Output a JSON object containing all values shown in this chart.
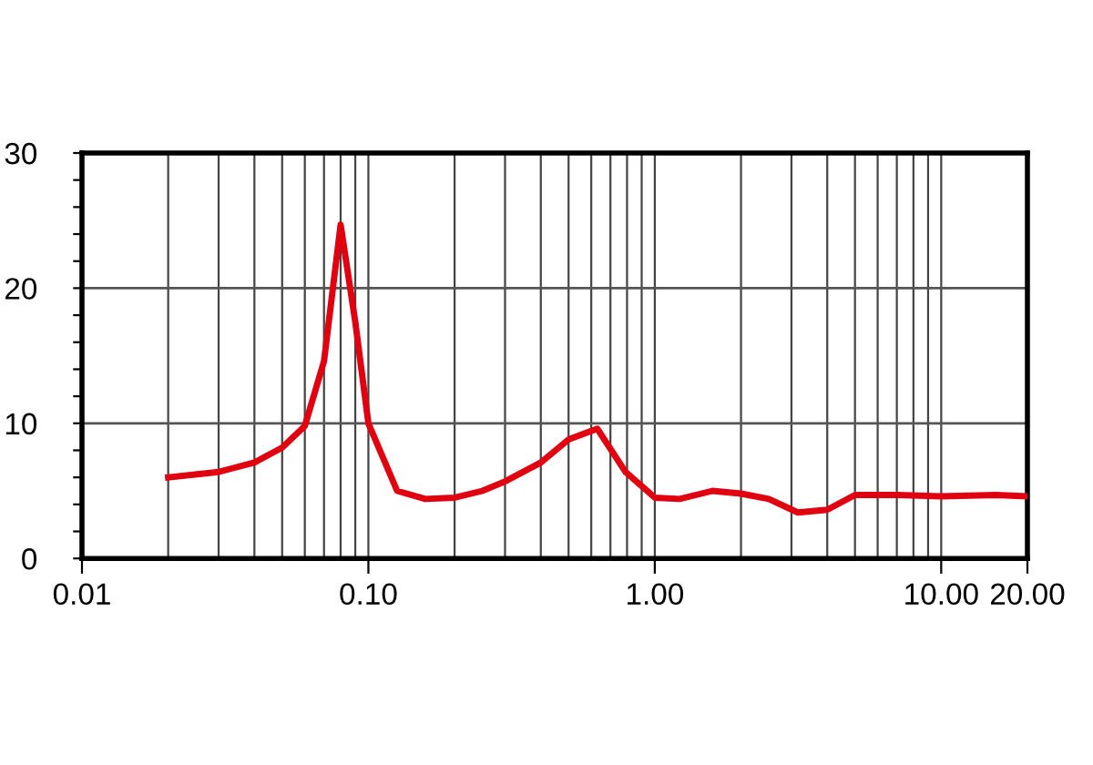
{
  "chart_data": {
    "type": "line",
    "log": "x",
    "x": [
      0.02,
      0.03,
      0.04,
      0.05,
      0.06,
      0.07,
      0.08,
      0.09,
      0.1,
      0.126,
      0.158,
      0.2,
      0.25,
      0.3,
      0.4,
      0.5,
      0.63,
      0.79,
      1.0,
      1.22,
      1.59,
      2.0,
      2.5,
      3.16,
      4.0,
      5.0,
      7.0,
      10.0,
      15.5,
      20.0
    ],
    "series": [
      {
        "color": "#e0000f",
        "values": [
          6.0,
          6.4,
          7.1,
          8.2,
          9.8,
          14.6,
          24.7,
          17.5,
          10.0,
          5.0,
          4.4,
          4.5,
          5.0,
          5.7,
          7.1,
          8.8,
          9.6,
          6.4,
          4.5,
          4.4,
          5.0,
          4.8,
          4.4,
          3.4,
          3.6,
          4.7,
          4.7,
          4.6,
          4.7,
          4.6
        ]
      }
    ],
    "xlim": [
      0.01,
      20
    ],
    "xticks": [
      {
        "value": 0.01,
        "label": "0.01"
      },
      {
        "value": 0.02,
        "label": null
      },
      {
        "value": 0.03,
        "label": null
      },
      {
        "value": 0.04,
        "label": null
      },
      {
        "value": 0.05,
        "label": null
      },
      {
        "value": 0.06,
        "label": null
      },
      {
        "value": 0.07,
        "label": null
      },
      {
        "value": 0.08,
        "label": null
      },
      {
        "value": 0.09,
        "label": null
      },
      {
        "value": 0.1,
        "label": "0.10"
      },
      {
        "value": 0.2,
        "label": null
      },
      {
        "value": 0.3,
        "label": null
      },
      {
        "value": 0.4,
        "label": null
      },
      {
        "value": 0.5,
        "label": null
      },
      {
        "value": 0.6,
        "label": null
      },
      {
        "value": 0.7,
        "label": null
      },
      {
        "value": 0.8,
        "label": null
      },
      {
        "value": 0.9,
        "label": null
      },
      {
        "value": 1,
        "label": "1.00"
      },
      {
        "value": 2,
        "label": null
      },
      {
        "value": 3,
        "label": null
      },
      {
        "value": 4,
        "label": null
      },
      {
        "value": 5,
        "label": null
      },
      {
        "value": 6,
        "label": null
      },
      {
        "value": 7,
        "label": null
      },
      {
        "value": 8,
        "label": null
      },
      {
        "value": 9,
        "label": null
      },
      {
        "value": 10,
        "label": "10.00"
      },
      {
        "value": 20,
        "label": "20.00"
      }
    ],
    "ylim": [
      0,
      30
    ],
    "yticks": [
      0,
      {
        "value": 2,
        "label": null
      },
      {
        "value": 4,
        "label": null
      },
      {
        "value": 6,
        "label": null
      },
      {
        "value": 8,
        "label": null
      },
      10,
      {
        "value": 12,
        "label": null
      },
      {
        "value": 14,
        "label": null
      },
      {
        "value": 16,
        "label": null
      },
      {
        "value": 18,
        "label": null
      },
      20,
      {
        "value": 22,
        "label": null
      },
      {
        "value": 24,
        "label": null
      },
      {
        "value": 26,
        "label": null
      },
      {
        "value": 28,
        "label": null
      },
      30
    ],
    "grid": true,
    "line_style": "solid",
    "marker": "none"
  }
}
